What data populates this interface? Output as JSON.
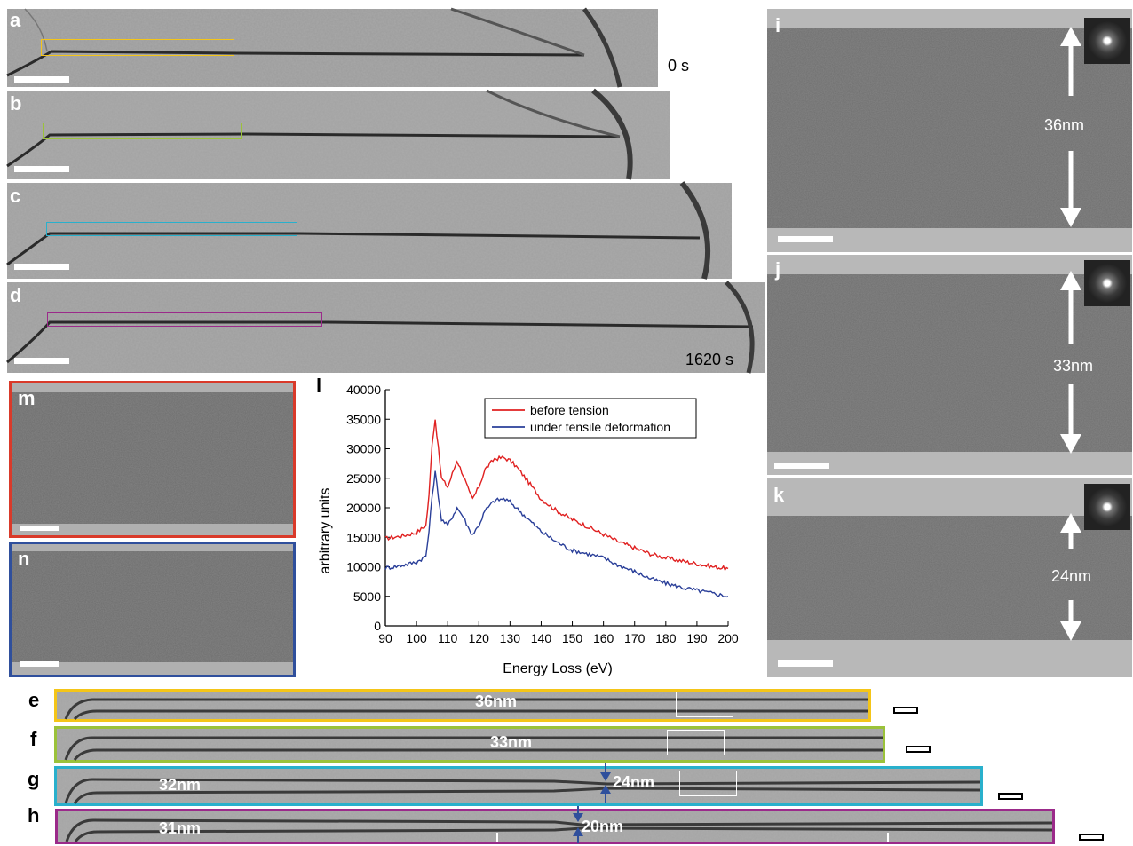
{
  "figure": {
    "panels_top": [
      {
        "label": "a",
        "roi_color": "#f4c518",
        "time": "0 s"
      },
      {
        "label": "b",
        "roi_color": "#9bc23a",
        "time": ""
      },
      {
        "label": "c",
        "roi_color": "#29b0cc",
        "time": ""
      },
      {
        "label": "d",
        "roi_color": "#9b2a8a",
        "time": "1620 s"
      }
    ],
    "panels_right": [
      {
        "label": "i",
        "thickness": "36nm"
      },
      {
        "label": "j",
        "thickness": "33nm"
      },
      {
        "label": "k",
        "thickness": "24nm"
      }
    ],
    "panels_small": [
      {
        "label": "m",
        "border_color": "#d93a2a"
      },
      {
        "label": "n",
        "border_color": "#2f4f9c"
      }
    ],
    "strips": [
      {
        "label": "e",
        "color": "#f4c518",
        "meas_center": "36nm",
        "meas_left": "",
        "meas_neck": ""
      },
      {
        "label": "f",
        "color": "#9bc23a",
        "meas_center": "33nm",
        "meas_left": "",
        "meas_neck": ""
      },
      {
        "label": "g",
        "color": "#29b0cc",
        "meas_center": "",
        "meas_left": "32nm",
        "meas_neck": "24nm"
      },
      {
        "label": "h",
        "color": "#9b2a8a",
        "meas_center": "",
        "meas_left": "31nm",
        "meas_neck": "20nm"
      }
    ]
  },
  "chart_data": {
    "panel_label": "l",
    "type": "line",
    "xlabel": "Energy Loss (eV)",
    "ylabel": "arbitrary units",
    "xlim": [
      90,
      200
    ],
    "ylim": [
      0,
      40000
    ],
    "xticks": [
      "90",
      "100",
      "110",
      "120",
      "130",
      "140",
      "150",
      "160",
      "170",
      "180",
      "190",
      "200"
    ],
    "yticks": [
      "0",
      "5000",
      "10000",
      "15000",
      "20000",
      "25000",
      "30000",
      "35000",
      "40000"
    ],
    "legend_position": "top-right",
    "series": [
      {
        "name": "before tension",
        "color": "#e02020",
        "x": [
          90,
          95,
          100,
          103,
          104,
          105,
          106,
          107,
          108,
          110,
          112,
          113,
          115,
          117,
          118,
          120,
          122,
          125,
          128,
          130,
          132,
          135,
          140,
          145,
          150,
          155,
          160,
          165,
          170,
          175,
          180,
          185,
          190,
          195,
          200
        ],
        "y": [
          14800,
          15200,
          15800,
          17000,
          22000,
          31000,
          35000,
          30000,
          25000,
          23500,
          26500,
          28000,
          25500,
          22500,
          21500,
          23500,
          26500,
          28300,
          28500,
          28000,
          27000,
          25000,
          21500,
          19500,
          18000,
          16800,
          15500,
          14200,
          13200,
          12200,
          11500,
          11000,
          10500,
          10000,
          9700
        ]
      },
      {
        "name": "under tensile deformation",
        "color": "#2a3f99",
        "x": [
          90,
          95,
          100,
          103,
          104,
          105,
          106,
          107,
          108,
          110,
          112,
          113,
          115,
          117,
          118,
          120,
          122,
          125,
          128,
          130,
          132,
          135,
          140,
          145,
          150,
          155,
          160,
          165,
          170,
          175,
          180,
          185,
          190,
          195,
          200
        ],
        "y": [
          9800,
          10200,
          10800,
          11800,
          16000,
          22000,
          26000,
          22000,
          18000,
          17000,
          19000,
          20000,
          18500,
          16200,
          15500,
          17000,
          19500,
          21200,
          21500,
          21000,
          20000,
          18500,
          16000,
          14200,
          12800,
          12200,
          11500,
          10200,
          9200,
          8000,
          7200,
          6500,
          6000,
          5500,
          5000
        ]
      }
    ]
  }
}
